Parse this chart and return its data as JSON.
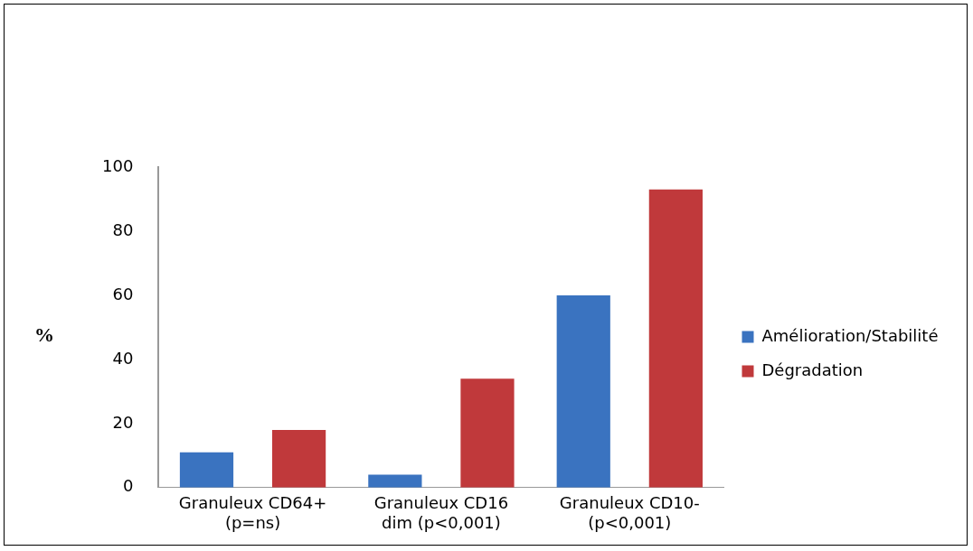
{
  "chart_data": {
    "type": "bar",
    "ylabel": "%",
    "categories": [
      "Granuleux CD64+ (p=ns)",
      "Granuleux CD16 dim (p<0,001)",
      "Granuleux CD10- (p<0,001)"
    ],
    "series": [
      {
        "name": "Amélioration/Stabilité",
        "color": "#3a73c0",
        "values": [
          11,
          4,
          60
        ]
      },
      {
        "name": "Dégradation",
        "color": "#c0393b",
        "values": [
          18,
          34,
          93
        ]
      }
    ],
    "ylim": [
      0,
      100
    ],
    "yticks": [
      0,
      20,
      40,
      60,
      80,
      100
    ],
    "grid": false,
    "legend": "right"
  }
}
